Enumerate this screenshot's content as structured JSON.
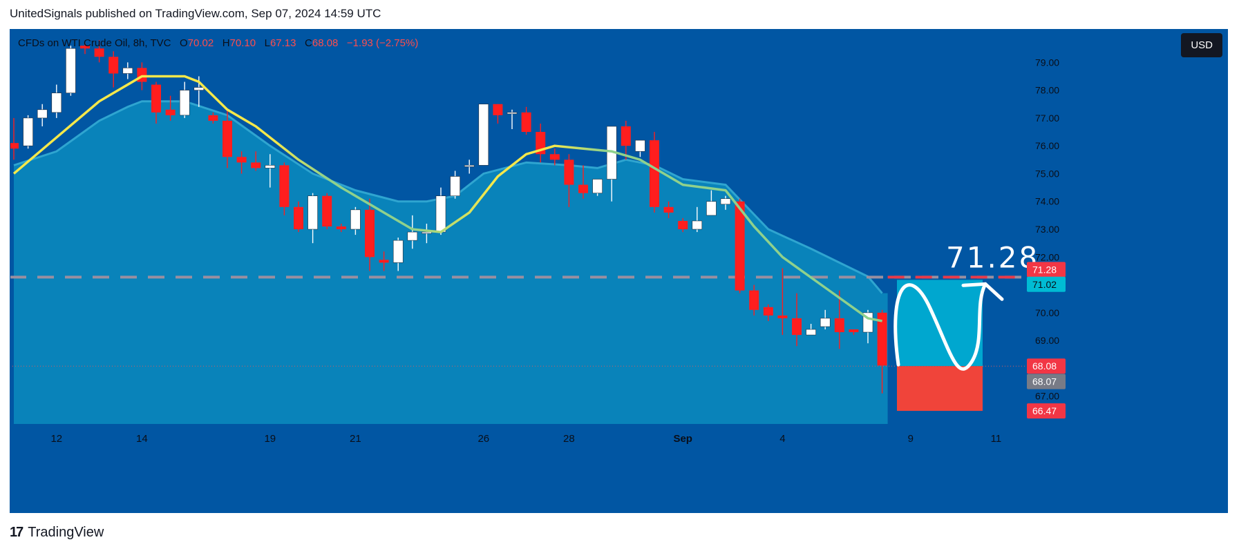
{
  "caption": "UnitedSignals published on TradingView.com, Sep 07, 2024 14:59 UTC",
  "legend": {
    "symbol": "CFDs on WTI Crude Oil, 8h, TVC",
    "open_label": "O",
    "open": "70.02",
    "high_label": "H",
    "high": "70.10",
    "low_label": "L",
    "low": "67.13",
    "close_label": "C",
    "close": "68.08",
    "change": "−1.93 (−2.75%)"
  },
  "currency_button": "USD",
  "brand": {
    "logo": "17",
    "name": "TradingView"
  },
  "colors": {
    "background": "#0156A3",
    "up_candle": "#FFFFFF",
    "down_candle": "#FF1E1E",
    "ema_fast": "#F5E84A",
    "ema_slow": "#8FD18C",
    "band_fill": "#0A86BC",
    "target_box": "#00A7CF",
    "stop_box": "#F0443A",
    "price_badge_red": "#F23645",
    "price_badge_cyan": "#00BCD4",
    "price_badge_gray": "#787B86"
  },
  "chart_data": {
    "type": "candlestick",
    "symbol": "CFDs on WTI Crude Oil",
    "interval": "8h",
    "ylim": [
      66.0,
      80.2
    ],
    "y_ticks": [
      "79.00",
      "78.00",
      "77.00",
      "76.00",
      "75.00",
      "74.00",
      "73.00",
      "72.00",
      "70.00",
      "69.00",
      "67.00"
    ],
    "x_labels": [
      {
        "label": "12",
        "index": 3
      },
      {
        "label": "14",
        "index": 9
      },
      {
        "label": "19",
        "index": 18
      },
      {
        "label": "21",
        "index": 24
      },
      {
        "label": "26",
        "index": 33
      },
      {
        "label": "28",
        "index": 39
      },
      {
        "label": "Sep",
        "index": 47
      },
      {
        "label": "4",
        "index": 54
      },
      {
        "label": "9",
        "index": 63
      },
      {
        "label": "11",
        "index": 69
      }
    ],
    "candles": [
      {
        "o": 76.1,
        "h": 77.0,
        "l": 75.5,
        "c": 75.9
      },
      {
        "o": 76.0,
        "h": 77.1,
        "l": 75.9,
        "c": 77.0
      },
      {
        "o": 77.0,
        "h": 77.5,
        "l": 76.7,
        "c": 77.3
      },
      {
        "o": 77.2,
        "h": 78.2,
        "l": 77.0,
        "c": 77.9
      },
      {
        "o": 77.9,
        "h": 79.6,
        "l": 77.8,
        "c": 79.5
      },
      {
        "o": 79.6,
        "h": 79.7,
        "l": 79.3,
        "c": 79.5
      },
      {
        "o": 79.5,
        "h": 79.8,
        "l": 79.0,
        "c": 79.2
      },
      {
        "o": 79.2,
        "h": 79.4,
        "l": 78.1,
        "c": 78.6
      },
      {
        "o": 78.6,
        "h": 79.0,
        "l": 78.4,
        "c": 78.8
      },
      {
        "o": 78.8,
        "h": 79.0,
        "l": 78.0,
        "c": 78.3
      },
      {
        "o": 78.2,
        "h": 78.3,
        "l": 76.8,
        "c": 77.2
      },
      {
        "o": 77.3,
        "h": 77.8,
        "l": 76.9,
        "c": 77.1
      },
      {
        "o": 77.1,
        "h": 78.3,
        "l": 77.0,
        "c": 78.0
      },
      {
        "o": 78.0,
        "h": 78.5,
        "l": 77.4,
        "c": 78.1
      },
      {
        "o": 77.1,
        "h": 77.2,
        "l": 76.8,
        "c": 76.9
      },
      {
        "o": 76.9,
        "h": 77.3,
        "l": 75.2,
        "c": 75.6
      },
      {
        "o": 75.6,
        "h": 75.8,
        "l": 75.0,
        "c": 75.4
      },
      {
        "o": 75.4,
        "h": 75.8,
        "l": 75.1,
        "c": 75.2
      },
      {
        "o": 75.2,
        "h": 75.7,
        "l": 74.5,
        "c": 75.3
      },
      {
        "o": 75.3,
        "h": 75.4,
        "l": 73.5,
        "c": 73.8
      },
      {
        "o": 73.8,
        "h": 74.0,
        "l": 72.9,
        "c": 73.0
      },
      {
        "o": 73.0,
        "h": 74.3,
        "l": 72.5,
        "c": 74.2
      },
      {
        "o": 74.2,
        "h": 74.3,
        "l": 73.0,
        "c": 73.1
      },
      {
        "o": 73.1,
        "h": 73.2,
        "l": 72.9,
        "c": 73.0
      },
      {
        "o": 73.0,
        "h": 73.8,
        "l": 72.8,
        "c": 73.7
      },
      {
        "o": 73.7,
        "h": 74.1,
        "l": 71.5,
        "c": 72.0
      },
      {
        "o": 71.9,
        "h": 72.2,
        "l": 71.5,
        "c": 71.8
      },
      {
        "o": 71.8,
        "h": 72.7,
        "l": 71.5,
        "c": 72.6
      },
      {
        "o": 72.6,
        "h": 73.5,
        "l": 72.3,
        "c": 72.9
      },
      {
        "o": 72.9,
        "h": 73.2,
        "l": 72.5,
        "c": 72.9
      },
      {
        "o": 72.9,
        "h": 74.5,
        "l": 72.8,
        "c": 74.2
      },
      {
        "o": 74.2,
        "h": 75.1,
        "l": 74.1,
        "c": 74.9
      },
      {
        "o": 75.3,
        "h": 75.5,
        "l": 75.0,
        "c": 75.3
      },
      {
        "o": 75.3,
        "h": 77.5,
        "l": 75.3,
        "c": 77.5
      },
      {
        "o": 77.5,
        "h": 77.5,
        "l": 76.8,
        "c": 77.1
      },
      {
        "o": 77.2,
        "h": 77.3,
        "l": 76.6,
        "c": 77.2
      },
      {
        "o": 77.2,
        "h": 77.4,
        "l": 76.4,
        "c": 76.5
      },
      {
        "o": 76.5,
        "h": 76.8,
        "l": 75.4,
        "c": 75.7
      },
      {
        "o": 75.7,
        "h": 75.9,
        "l": 75.3,
        "c": 75.5
      },
      {
        "o": 75.5,
        "h": 75.7,
        "l": 73.8,
        "c": 74.6
      },
      {
        "o": 74.6,
        "h": 75.3,
        "l": 74.1,
        "c": 74.3
      },
      {
        "o": 74.3,
        "h": 74.8,
        "l": 74.2,
        "c": 74.8
      },
      {
        "o": 74.8,
        "h": 76.7,
        "l": 74.0,
        "c": 76.7
      },
      {
        "o": 76.7,
        "h": 76.9,
        "l": 75.5,
        "c": 76.0
      },
      {
        "o": 75.8,
        "h": 76.2,
        "l": 75.6,
        "c": 76.2
      },
      {
        "o": 76.2,
        "h": 76.5,
        "l": 73.6,
        "c": 73.8
      },
      {
        "o": 73.8,
        "h": 74.0,
        "l": 73.4,
        "c": 73.6
      },
      {
        "o": 73.3,
        "h": 73.4,
        "l": 72.9,
        "c": 73.0
      },
      {
        "o": 73.0,
        "h": 73.8,
        "l": 72.9,
        "c": 73.3
      },
      {
        "o": 73.5,
        "h": 74.4,
        "l": 73.5,
        "c": 74.0
      },
      {
        "o": 73.9,
        "h": 74.2,
        "l": 73.7,
        "c": 74.1
      },
      {
        "o": 74.0,
        "h": 74.1,
        "l": 70.7,
        "c": 70.8
      },
      {
        "o": 70.8,
        "h": 71.0,
        "l": 69.9,
        "c": 70.1
      },
      {
        "o": 70.2,
        "h": 70.3,
        "l": 69.7,
        "c": 69.9
      },
      {
        "o": 69.9,
        "h": 71.6,
        "l": 69.2,
        "c": 69.8
      },
      {
        "o": 69.8,
        "h": 70.7,
        "l": 68.8,
        "c": 69.2
      },
      {
        "o": 69.2,
        "h": 69.6,
        "l": 69.2,
        "c": 69.4
      },
      {
        "o": 69.5,
        "h": 70.1,
        "l": 69.4,
        "c": 69.8
      },
      {
        "o": 69.8,
        "h": 70.8,
        "l": 68.7,
        "c": 69.3
      },
      {
        "o": 69.4,
        "h": 69.4,
        "l": 69.2,
        "c": 69.3
      },
      {
        "o": 69.3,
        "h": 70.1,
        "l": 68.9,
        "c": 70.0
      },
      {
        "o": 70.0,
        "h": 70.1,
        "l": 67.1,
        "c": 68.1
      }
    ],
    "ema_fast": [
      [
        0,
        75.0
      ],
      [
        3,
        76.3
      ],
      [
        6,
        77.6
      ],
      [
        8,
        78.2
      ],
      [
        9,
        78.5
      ],
      [
        12,
        78.5
      ],
      [
        13,
        78.3
      ],
      [
        15,
        77.3
      ],
      [
        17,
        76.7
      ],
      [
        20,
        75.5
      ],
      [
        23,
        74.5
      ],
      [
        26,
        73.6
      ],
      [
        28,
        73.0
      ],
      [
        30,
        72.9
      ],
      [
        32,
        73.6
      ],
      [
        34,
        74.9
      ],
      [
        36,
        75.7
      ],
      [
        38,
        76.0
      ],
      [
        40,
        75.9
      ],
      [
        42,
        75.8
      ],
      [
        44,
        75.5
      ],
      [
        47,
        74.6
      ],
      [
        50,
        74.4
      ],
      [
        52,
        73.1
      ],
      [
        54,
        72.0
      ],
      [
        57,
        70.9
      ],
      [
        60,
        69.8
      ],
      [
        61,
        69.7
      ]
    ],
    "band_top": [
      [
        0,
        75.3
      ],
      [
        3,
        75.8
      ],
      [
        6,
        76.9
      ],
      [
        8,
        77.4
      ],
      [
        9,
        77.6
      ],
      [
        12,
        77.6
      ],
      [
        15,
        77.1
      ],
      [
        18,
        76.0
      ],
      [
        21,
        75.0
      ],
      [
        24,
        74.4
      ],
      [
        27,
        74.0
      ],
      [
        29,
        74.0
      ],
      [
        31,
        74.2
      ],
      [
        33,
        75.0
      ],
      [
        36,
        75.4
      ],
      [
        39,
        75.3
      ],
      [
        41,
        75.2
      ],
      [
        43,
        75.5
      ],
      [
        45,
        75.3
      ],
      [
        47,
        74.8
      ],
      [
        50,
        74.6
      ],
      [
        53,
        73.0
      ],
      [
        56,
        72.3
      ],
      [
        58,
        71.8
      ],
      [
        60,
        71.3
      ],
      [
        61,
        70.7
      ]
    ],
    "levels": {
      "target": 71.28,
      "ema_badge": 71.02,
      "last_close": 68.08,
      "prev_close": 68.07,
      "stop": 66.47
    },
    "badges": [
      "71.28",
      "71.02",
      "68.08",
      "68.07",
      "66.47"
    ],
    "annotation_text": "71.28"
  }
}
